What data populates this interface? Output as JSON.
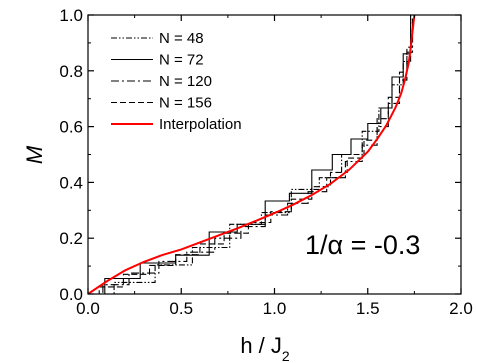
{
  "chart_data": {
    "type": "line",
    "title": "",
    "xlabel_main": "h / J",
    "xlabel_sub": "2",
    "ylabel": "M",
    "xlim": [
      0.0,
      2.0
    ],
    "ylim": [
      0.0,
      1.0
    ],
    "xticks": [
      "0.0",
      "0.5",
      "1.0",
      "1.5",
      "2.0"
    ],
    "yticks": [
      "0.0",
      "0.2",
      "0.4",
      "0.6",
      "0.8",
      "1.0"
    ],
    "annotation_prefix": "1/",
    "annotation_symbol": "α",
    "annotation_suffix": " = -0.3",
    "legend_position": "top-left",
    "series": [
      {
        "name": "N = 48",
        "style": "dash-dot-dot",
        "color": "#000000",
        "x": [
          0.0,
          0.14,
          0.14,
          0.36,
          0.36,
          0.56,
          0.56,
          0.76,
          0.76,
          0.93,
          0.93,
          1.09,
          1.09,
          1.24,
          1.24,
          1.36,
          1.36,
          1.47,
          1.47,
          1.56,
          1.56,
          1.63,
          1.63,
          1.69,
          1.69,
          1.73,
          1.73
        ],
        "y": [
          0.0,
          0.0,
          0.0417,
          0.0417,
          0.1042,
          0.1042,
          0.1667,
          0.1667,
          0.25,
          0.25,
          0.2917,
          0.2917,
          0.375,
          0.375,
          0.4167,
          0.4167,
          0.5,
          0.5,
          0.5833,
          0.5833,
          0.6667,
          0.6667,
          0.75,
          0.75,
          0.8333,
          0.8333,
          1.0
        ]
      },
      {
        "name": "N = 72",
        "style": "solid",
        "color": "#000000",
        "x": [
          0.0,
          0.09,
          0.09,
          0.28,
          0.28,
          0.47,
          0.47,
          0.65,
          0.65,
          0.8,
          0.8,
          0.95,
          0.95,
          1.08,
          1.08,
          1.2,
          1.2,
          1.31,
          1.31,
          1.41,
          1.41,
          1.5,
          1.5,
          1.57,
          1.57,
          1.63,
          1.63,
          1.69,
          1.69,
          1.73,
          1.73
        ],
        "y": [
          0.0,
          0.0,
          0.0556,
          0.0556,
          0.1111,
          0.1111,
          0.1389,
          0.1389,
          0.2222,
          0.2222,
          0.25,
          0.25,
          0.3333,
          0.3333,
          0.3611,
          0.3611,
          0.4444,
          0.4444,
          0.5,
          0.5,
          0.5556,
          0.5556,
          0.6111,
          0.6111,
          0.6667,
          0.6667,
          0.7778,
          0.7778,
          0.8611,
          0.8611,
          1.0
        ]
      },
      {
        "name": "N = 120",
        "style": "dash-dot",
        "color": "#000000",
        "x": [
          0.0,
          0.08,
          0.08,
          0.22,
          0.22,
          0.38,
          0.38,
          0.53,
          0.53,
          0.68,
          0.68,
          0.82,
          0.82,
          0.95,
          0.95,
          1.07,
          1.07,
          1.18,
          1.18,
          1.28,
          1.28,
          1.38,
          1.38,
          1.47,
          1.47,
          1.55,
          1.55,
          1.61,
          1.61,
          1.67,
          1.67,
          1.71,
          1.71,
          1.74,
          1.74
        ],
        "y": [
          0.0,
          0.0,
          0.0333,
          0.0333,
          0.075,
          0.075,
          0.1167,
          0.1167,
          0.15,
          0.15,
          0.2,
          0.2,
          0.2417,
          0.2417,
          0.2833,
          0.2833,
          0.325,
          0.325,
          0.3667,
          0.3667,
          0.4167,
          0.4167,
          0.475,
          0.475,
          0.5333,
          0.5333,
          0.6,
          0.6,
          0.6833,
          0.6833,
          0.7667,
          0.7667,
          0.8667,
          0.8667,
          1.0
        ]
      },
      {
        "name": "N = 156",
        "style": "dash",
        "color": "#000000",
        "x": [
          0.0,
          0.06,
          0.06,
          0.19,
          0.19,
          0.33,
          0.33,
          0.47,
          0.47,
          0.6,
          0.6,
          0.73,
          0.73,
          0.86,
          0.86,
          0.98,
          0.98,
          1.09,
          1.09,
          1.2,
          1.2,
          1.3,
          1.3,
          1.39,
          1.39,
          1.48,
          1.48,
          1.55,
          1.55,
          1.61,
          1.61,
          1.67,
          1.67,
          1.71,
          1.71,
          1.74,
          1.74
        ],
        "y": [
          0.0,
          0.0,
          0.0256,
          0.0256,
          0.0705,
          0.0705,
          0.1026,
          0.1026,
          0.141,
          0.141,
          0.1795,
          0.1795,
          0.2179,
          0.2179,
          0.2564,
          0.2564,
          0.2949,
          0.2949,
          0.3397,
          0.3397,
          0.3846,
          0.3846,
          0.4359,
          0.4359,
          0.4872,
          0.4872,
          0.5513,
          0.5513,
          0.6282,
          0.6282,
          0.7051,
          0.7051,
          0.7949,
          0.7949,
          0.8846,
          0.8846,
          1.0
        ]
      },
      {
        "name": "Interpolation",
        "style": "solid",
        "color": "#ff0000",
        "x": [
          0.0,
          0.1,
          0.2,
          0.3,
          0.4,
          0.5,
          0.6,
          0.7,
          0.8,
          0.9,
          1.0,
          1.1,
          1.2,
          1.3,
          1.4,
          1.5,
          1.55,
          1.6,
          1.65,
          1.68,
          1.7,
          1.72,
          1.73,
          1.74,
          1.75
        ],
        "y": [
          0.0,
          0.045,
          0.085,
          0.115,
          0.14,
          0.16,
          0.185,
          0.21,
          0.235,
          0.262,
          0.29,
          0.32,
          0.355,
          0.395,
          0.445,
          0.51,
          0.555,
          0.605,
          0.67,
          0.72,
          0.77,
          0.83,
          0.88,
          0.94,
          1.0
        ]
      }
    ]
  }
}
